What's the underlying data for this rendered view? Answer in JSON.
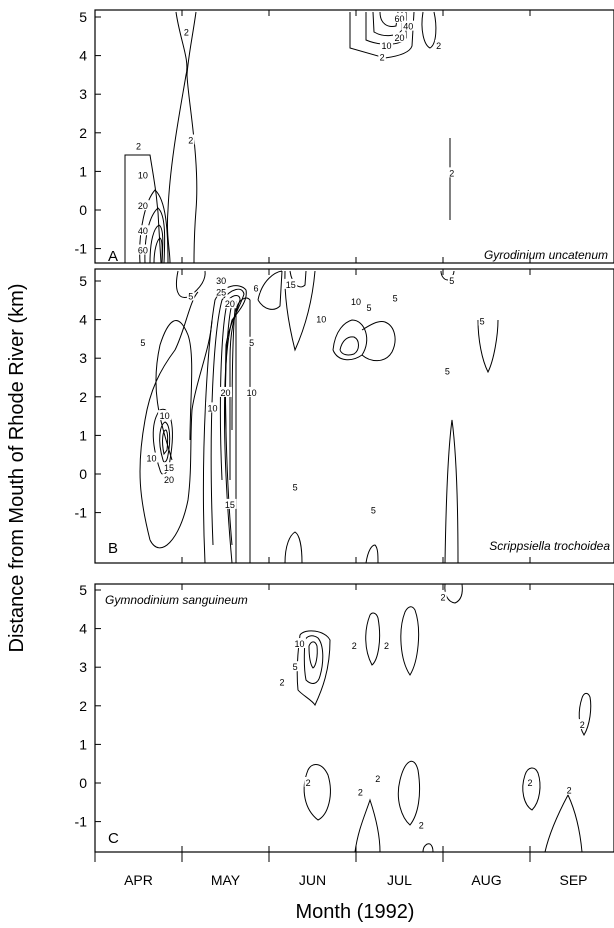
{
  "chart_data": {
    "type": "contour",
    "xlabel": "Month (1992)",
    "ylabel": "Distance from Mouth of Rhode River (km)",
    "x_categories": [
      "APR",
      "MAY",
      "JUN",
      "JUL",
      "AUG",
      "SEP"
    ],
    "yticks": [
      "5",
      "4",
      "3",
      "2",
      "1",
      "0",
      "-1"
    ],
    "ylim": [
      -1.4,
      5.2
    ],
    "grid": false,
    "panels": [
      {
        "letter": "A",
        "species": "Gyrodinium uncatenum",
        "contour_labels": [
          {
            "text": "2",
            "month": 1.05,
            "km": 4.6
          },
          {
            "text": "2",
            "month": 0.5,
            "km": 1.65
          },
          {
            "text": "2",
            "month": 1.1,
            "km": 1.8
          },
          {
            "text": "10",
            "month": 0.55,
            "km": 0.9
          },
          {
            "text": "20",
            "month": 0.55,
            "km": 0.1
          },
          {
            "text": "40",
            "month": 0.55,
            "km": -0.55
          },
          {
            "text": "60",
            "month": 0.55,
            "km": -1.05
          },
          {
            "text": "60",
            "month": 3.5,
            "km": 4.95
          },
          {
            "text": "40",
            "month": 3.6,
            "km": 4.75
          },
          {
            "text": "20",
            "month": 3.5,
            "km": 4.45
          },
          {
            "text": "10",
            "month": 3.35,
            "km": 4.25
          },
          {
            "text": "2",
            "month": 3.3,
            "km": 3.95
          },
          {
            "text": "2",
            "month": 3.95,
            "km": 4.25
          },
          {
            "text": "2",
            "month": 4.1,
            "km": 0.95
          }
        ]
      },
      {
        "letter": "B",
        "species": "Scrippsiella trochoidea",
        "contour_labels": [
          {
            "text": "5",
            "month": 1.1,
            "km": 4.6
          },
          {
            "text": "30",
            "month": 1.45,
            "km": 5.0
          },
          {
            "text": "25",
            "month": 1.45,
            "km": 4.7
          },
          {
            "text": "20",
            "month": 1.55,
            "km": 4.4
          },
          {
            "text": "6",
            "month": 1.85,
            "km": 4.8
          },
          {
            "text": "15",
            "month": 2.25,
            "km": 4.9
          },
          {
            "text": "10",
            "month": 2.6,
            "km": 4.0
          },
          {
            "text": "5",
            "month": 0.55,
            "km": 3.4
          },
          {
            "text": "5",
            "month": 1.8,
            "km": 3.4
          },
          {
            "text": "20",
            "month": 1.5,
            "km": 2.1
          },
          {
            "text": "10",
            "month": 1.8,
            "km": 2.1
          },
          {
            "text": "10",
            "month": 1.35,
            "km": 1.7
          },
          {
            "text": "10",
            "month": 0.8,
            "km": 1.5
          },
          {
            "text": "10",
            "month": 0.65,
            "km": 0.4
          },
          {
            "text": "15",
            "month": 0.85,
            "km": 0.15
          },
          {
            "text": "20",
            "month": 0.85,
            "km": -0.15
          },
          {
            "text": "15",
            "month": 1.55,
            "km": -0.8
          },
          {
            "text": "5",
            "month": 2.3,
            "km": -0.35
          },
          {
            "text": "10",
            "month": 3.0,
            "km": 4.45
          },
          {
            "text": "5",
            "month": 3.15,
            "km": 4.3
          },
          {
            "text": "5",
            "month": 3.45,
            "km": 4.55
          },
          {
            "text": "5",
            "month": 3.2,
            "km": -0.95
          },
          {
            "text": "5",
            "month": 4.1,
            "km": 5.0
          },
          {
            "text": "5",
            "month": 4.05,
            "km": 2.65
          },
          {
            "text": "5",
            "month": 4.45,
            "km": 3.95
          }
        ]
      },
      {
        "letter": "C",
        "species": "Gymnodinium sanguineum",
        "contour_labels": [
          {
            "text": "10",
            "month": 2.35,
            "km": 3.6
          },
          {
            "text": "5",
            "month": 2.3,
            "km": 3.0
          },
          {
            "text": "2",
            "month": 2.15,
            "km": 2.6
          },
          {
            "text": "2",
            "month": 2.98,
            "km": 3.55
          },
          {
            "text": "2",
            "month": 3.35,
            "km": 3.55
          },
          {
            "text": "2",
            "month": 4.0,
            "km": 4.8
          },
          {
            "text": "2",
            "month": 5.6,
            "km": 1.5
          },
          {
            "text": "2",
            "month": 2.45,
            "km": 0.0
          },
          {
            "text": "2",
            "month": 3.05,
            "km": -0.25
          },
          {
            "text": "2",
            "month": 3.25,
            "km": 0.1
          },
          {
            "text": "2",
            "month": 3.75,
            "km": -1.1
          },
          {
            "text": "2",
            "month": 5.0,
            "km": 0.0
          },
          {
            "text": "2",
            "month": 5.45,
            "km": -0.2
          }
        ]
      }
    ]
  }
}
